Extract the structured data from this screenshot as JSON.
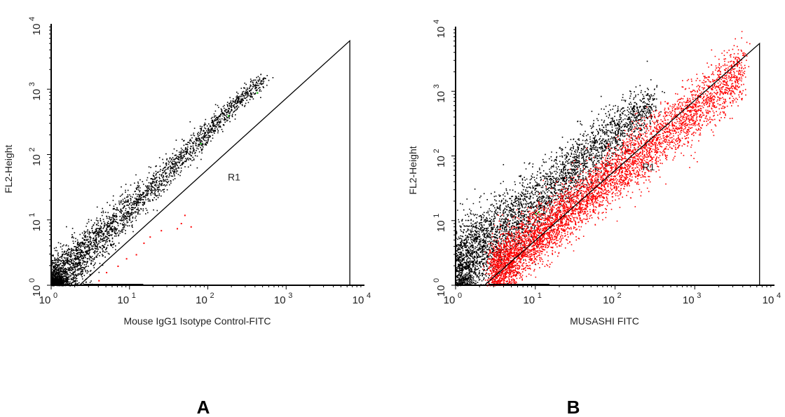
{
  "chart_data": [
    {
      "type": "scatter",
      "panel_label": "A",
      "xlabel": "Mouse IgG1 Isotype Control-FITC",
      "ylabel": "FL2-Height",
      "xscale": "log",
      "yscale": "log",
      "xlim": [
        1,
        10000
      ],
      "ylim": [
        1,
        10000
      ],
      "tick_values": [
        1,
        10,
        100,
        1000,
        10000
      ],
      "tick_labels": [
        {
          "base": "10",
          "exp": "0"
        },
        {
          "base": "10",
          "exp": "1"
        },
        {
          "base": "10",
          "exp": "2"
        },
        {
          "base": "10",
          "exp": "3"
        },
        {
          "base": "10",
          "exp": "4"
        }
      ],
      "gate": {
        "name": "R1",
        "label_at": [
          180,
          40
        ],
        "polygon": [
          [
            2.3,
            1
          ],
          [
            6500,
            5500
          ],
          [
            6500,
            1
          ]
        ]
      },
      "series": [
        {
          "color": "#000000",
          "population": "diagonal",
          "points": 3200,
          "x_range": [
            1,
            500
          ],
          "ridge_slope": 1.18,
          "ridge_offset": 1.0,
          "width_dec_low": 0.2,
          "width_dec_high": 0.03,
          "concentration": 2.2
        },
        {
          "color": "#ff0000",
          "population": "scatter",
          "points": 12,
          "sample": [
            [
              4,
              1.2
            ],
            [
              5,
              1.6
            ],
            [
              7,
              2.0
            ],
            [
              9,
              2.6
            ],
            [
              12,
              3.0
            ],
            [
              15,
              4.5
            ],
            [
              18,
              5.6
            ],
            [
              25,
              7.0
            ],
            [
              40,
              7.5
            ],
            [
              45,
              9.0
            ],
            [
              50,
              12.0
            ],
            [
              60,
              8.0
            ]
          ]
        },
        {
          "color": "#00cc00",
          "population": "scatter",
          "points": 3,
          "sample": [
            [
              80,
              150
            ],
            [
              180,
              400
            ],
            [
              420,
              900
            ]
          ]
        }
      ]
    },
    {
      "type": "scatter",
      "panel_label": "B",
      "xlabel": "MUSASHI FITC",
      "ylabel": "FL2-Height",
      "xscale": "log",
      "yscale": "log",
      "xlim": [
        1,
        10000
      ],
      "ylim": [
        1,
        10000
      ],
      "tick_values": [
        1,
        10,
        100,
        1000,
        10000
      ],
      "tick_labels": [
        {
          "base": "10",
          "exp": "0"
        },
        {
          "base": "10",
          "exp": "1"
        },
        {
          "base": "10",
          "exp": "2"
        },
        {
          "base": "10",
          "exp": "3"
        },
        {
          "base": "10",
          "exp": "4"
        }
      ],
      "gate": {
        "name": "R1",
        "label_at": [
          220,
          60
        ],
        "polygon": [
          [
            2.3,
            1
          ],
          [
            6500,
            5500
          ],
          [
            6500,
            1
          ]
        ]
      },
      "series": [
        {
          "color": "#000000",
          "population": "diagonal",
          "points": 3800,
          "x_range": [
            1,
            300
          ],
          "ridge_slope": 1.05,
          "ridge_offset": 1.8,
          "width_dec_low": 0.32,
          "width_dec_high": 0.18,
          "concentration": 1.6
        },
        {
          "color": "#ff0000",
          "population": "diagonal",
          "points": 5200,
          "x_range": [
            3,
            4000
          ],
          "ridge_slope": 1.0,
          "ridge_offset": 0.55,
          "width_dec_low": 0.22,
          "width_dec_high": 0.22,
          "concentration": 1.4
        },
        {
          "color": "#00cc00",
          "population": "scatter",
          "points": 2,
          "sample": [
            [
              10,
              13
            ],
            [
              11,
              14
            ]
          ]
        }
      ]
    }
  ]
}
